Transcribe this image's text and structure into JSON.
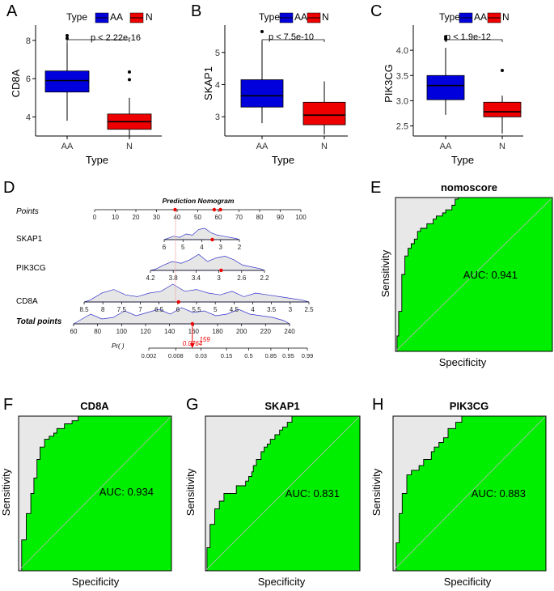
{
  "colors": {
    "aa": "#0000dd",
    "n": "#ee0000",
    "roc_fill": "#00ee00",
    "roc_bg": "#e8e8e8",
    "nomo_red": "#ee0000",
    "density_line": "#3333cc",
    "density_fill": "#e6e6e6"
  },
  "chart_data": [
    {
      "panel": "A",
      "type": "box",
      "ylabel": "CD8A",
      "xlabel": "Type",
      "legend_title": "Type",
      "legend": [
        "AA",
        "N"
      ],
      "categories": [
        "AA",
        "N"
      ],
      "pvalue": "p < 2.22e-16",
      "ylim": [
        3,
        8.8
      ],
      "yticks": [
        4,
        6,
        8
      ],
      "yticklabels": [
        "4",
        "6",
        "8"
      ],
      "boxes": [
        {
          "group": "AA",
          "whisker_low": 3.8,
          "q1": 5.3,
          "median": 5.9,
          "q3": 6.4,
          "whisker_high": 7.9,
          "outliers": [
            8.1,
            8.25
          ]
        },
        {
          "group": "N",
          "whisker_low": 3.0,
          "q1": 3.35,
          "median": 3.75,
          "q3": 4.15,
          "whisker_high": 5.0,
          "outliers": [
            5.95,
            6.35
          ]
        }
      ]
    },
    {
      "panel": "B",
      "type": "box",
      "ylabel": "SKAP1",
      "xlabel": "Type",
      "legend_title": "Type",
      "legend": [
        "AA",
        "N"
      ],
      "categories": [
        "AA",
        "N"
      ],
      "pvalue": "p < 7.5e-10",
      "ylim": [
        2.4,
        5.85
      ],
      "yticks": [
        3,
        4,
        5
      ],
      "yticklabels": [
        "3",
        "4",
        "5"
      ],
      "boxes": [
        {
          "group": "AA",
          "whisker_low": 2.8,
          "q1": 3.3,
          "median": 3.65,
          "q3": 4.15,
          "whisker_high": 5.35,
          "outliers": [
            5.65
          ]
        },
        {
          "group": "N",
          "whisker_low": 2.45,
          "q1": 2.75,
          "median": 3.05,
          "q3": 3.45,
          "whisker_high": 4.1,
          "outliers": []
        }
      ]
    },
    {
      "panel": "C",
      "type": "box",
      "ylabel": "PIK3CG",
      "xlabel": "Type",
      "legend_title": "Type",
      "legend": [
        "AA",
        "N"
      ],
      "categories": [
        "AA",
        "N"
      ],
      "pvalue": "p < 1.9e-12",
      "ylim": [
        2.3,
        4.5
      ],
      "yticks": [
        2.5,
        3.0,
        3.5,
        4.0
      ],
      "yticklabels": [
        "2.5",
        "3.0",
        "3.5",
        "4.0"
      ],
      "boxes": [
        {
          "group": "AA",
          "whisker_low": 2.72,
          "q1": 3.02,
          "median": 3.3,
          "q3": 3.5,
          "whisker_high": 4.05,
          "outliers": [
            4.22,
            4.27
          ]
        },
        {
          "group": "N",
          "whisker_low": 2.35,
          "q1": 2.68,
          "median": 2.78,
          "q3": 2.97,
          "whisker_high": 3.1,
          "outliers": [
            3.6
          ]
        }
      ]
    },
    {
      "panel": "D",
      "type": "nomogram",
      "title": "Prediction Nomogram",
      "rows": [
        {
          "label": "Points",
          "ticks": [
            "0",
            "10",
            "20",
            "30",
            "40",
            "50",
            "60",
            "70",
            "80",
            "90",
            "100"
          ]
        },
        {
          "label": "SKAP1",
          "ticks": [
            "6",
            "5",
            "4",
            "3",
            "2"
          ]
        },
        {
          "label": "PIK3CG",
          "ticks": [
            "4.2",
            "3.8",
            "3.4",
            "3",
            "2.6",
            "2.2"
          ]
        },
        {
          "label": "CD8A",
          "ticks": [
            "8.5",
            "8",
            "7.5",
            "7",
            "6.5",
            "6",
            "5.5",
            "5",
            "4.5",
            "4",
            "3.5",
            "3",
            "2.5"
          ]
        },
        {
          "label": "Total points",
          "ticks": [
            "60",
            "80",
            "100",
            "120",
            "140",
            "160",
            "180",
            "200",
            "220",
            "240"
          ]
        },
        {
          "label": "Pr( )",
          "ticks": [
            "0.002",
            "0.008",
            "0.03",
            "0.15",
            "0.5",
            "0.85",
            "0.95",
            "0.99"
          ]
        }
      ],
      "total_points_value": "159",
      "probability_value": "0.0764",
      "selected_points": [
        39,
        58,
        61
      ]
    },
    {
      "panel": "E",
      "type": "roc",
      "title": "nomoscore",
      "auc_label": "AUC: 0.941",
      "xlabel": "Specificity",
      "ylabel": "Sensitivity",
      "curve": [
        [
          0,
          0
        ],
        [
          0.01,
          0
        ],
        [
          0.01,
          0.1
        ],
        [
          0.02,
          0.1
        ],
        [
          0.02,
          0.26
        ],
        [
          0.04,
          0.26
        ],
        [
          0.04,
          0.5
        ],
        [
          0.06,
          0.5
        ],
        [
          0.06,
          0.62
        ],
        [
          0.08,
          0.62
        ],
        [
          0.08,
          0.67
        ],
        [
          0.1,
          0.67
        ],
        [
          0.1,
          0.7
        ],
        [
          0.12,
          0.7
        ],
        [
          0.12,
          0.73
        ],
        [
          0.14,
          0.73
        ],
        [
          0.14,
          0.78
        ],
        [
          0.16,
          0.78
        ],
        [
          0.16,
          0.8
        ],
        [
          0.2,
          0.8
        ],
        [
          0.2,
          0.83
        ],
        [
          0.24,
          0.83
        ],
        [
          0.24,
          0.86
        ],
        [
          0.26,
          0.86
        ],
        [
          0.26,
          0.88
        ],
        [
          0.3,
          0.88
        ],
        [
          0.3,
          0.9
        ],
        [
          0.32,
          0.9
        ],
        [
          0.32,
          0.92
        ],
        [
          0.36,
          0.92
        ],
        [
          0.36,
          0.95
        ],
        [
          0.38,
          0.95
        ],
        [
          0.38,
          0.99
        ],
        [
          0.4,
          0.99
        ],
        [
          0.4,
          1
        ],
        [
          1,
          1
        ]
      ]
    },
    {
      "panel": "F",
      "type": "roc",
      "title": "CD8A",
      "auc_label": "AUC: 0.934",
      "xlabel": "Specificity",
      "ylabel": "Sensitivity",
      "curve": [
        [
          0,
          0
        ],
        [
          0.02,
          0
        ],
        [
          0.02,
          0.2
        ],
        [
          0.05,
          0.2
        ],
        [
          0.05,
          0.37
        ],
        [
          0.08,
          0.37
        ],
        [
          0.08,
          0.5
        ],
        [
          0.1,
          0.5
        ],
        [
          0.1,
          0.6
        ],
        [
          0.12,
          0.6
        ],
        [
          0.12,
          0.72
        ],
        [
          0.14,
          0.72
        ],
        [
          0.14,
          0.8
        ],
        [
          0.17,
          0.8
        ],
        [
          0.17,
          0.85
        ],
        [
          0.2,
          0.85
        ],
        [
          0.2,
          0.87
        ],
        [
          0.23,
          0.87
        ],
        [
          0.23,
          0.89
        ],
        [
          0.25,
          0.89
        ],
        [
          0.25,
          0.92
        ],
        [
          0.3,
          0.92
        ],
        [
          0.3,
          0.95
        ],
        [
          0.35,
          0.95
        ],
        [
          0.35,
          0.97
        ],
        [
          0.39,
          0.97
        ],
        [
          0.39,
          1
        ],
        [
          1,
          1
        ]
      ]
    },
    {
      "panel": "G",
      "type": "roc",
      "title": "SKAP1",
      "auc_label": "AUC: 0.831",
      "xlabel": "Specificity",
      "ylabel": "Sensitivity",
      "curve": [
        [
          0,
          0
        ],
        [
          0.01,
          0
        ],
        [
          0.01,
          0.15
        ],
        [
          0.03,
          0.15
        ],
        [
          0.03,
          0.3
        ],
        [
          0.06,
          0.3
        ],
        [
          0.06,
          0.4
        ],
        [
          0.09,
          0.4
        ],
        [
          0.09,
          0.45
        ],
        [
          0.12,
          0.45
        ],
        [
          0.12,
          0.5
        ],
        [
          0.2,
          0.5
        ],
        [
          0.2,
          0.55
        ],
        [
          0.26,
          0.55
        ],
        [
          0.26,
          0.58
        ],
        [
          0.28,
          0.58
        ],
        [
          0.28,
          0.61
        ],
        [
          0.3,
          0.61
        ],
        [
          0.3,
          0.64
        ],
        [
          0.31,
          0.64
        ],
        [
          0.31,
          0.68
        ],
        [
          0.33,
          0.68
        ],
        [
          0.33,
          0.72
        ],
        [
          0.36,
          0.72
        ],
        [
          0.36,
          0.77
        ],
        [
          0.38,
          0.77
        ],
        [
          0.38,
          0.8
        ],
        [
          0.4,
          0.8
        ],
        [
          0.4,
          0.82
        ],
        [
          0.42,
          0.82
        ],
        [
          0.42,
          0.85
        ],
        [
          0.45,
          0.85
        ],
        [
          0.45,
          0.88
        ],
        [
          0.48,
          0.88
        ],
        [
          0.48,
          0.91
        ],
        [
          0.5,
          0.91
        ],
        [
          0.5,
          0.93
        ],
        [
          0.53,
          0.93
        ],
        [
          0.53,
          0.96
        ],
        [
          0.56,
          0.96
        ],
        [
          0.56,
          1
        ],
        [
          1,
          1
        ]
      ]
    },
    {
      "panel": "H",
      "type": "roc",
      "title": "PIK3CG",
      "auc_label": "AUC: 0.883",
      "xlabel": "Specificity",
      "ylabel": "Sensitivity",
      "curve": [
        [
          0,
          0
        ],
        [
          0.02,
          0
        ],
        [
          0.02,
          0.18
        ],
        [
          0.04,
          0.18
        ],
        [
          0.04,
          0.37
        ],
        [
          0.06,
          0.37
        ],
        [
          0.06,
          0.5
        ],
        [
          0.09,
          0.5
        ],
        [
          0.09,
          0.62
        ],
        [
          0.12,
          0.62
        ],
        [
          0.12,
          0.65
        ],
        [
          0.17,
          0.65
        ],
        [
          0.17,
          0.68
        ],
        [
          0.2,
          0.68
        ],
        [
          0.2,
          0.72
        ],
        [
          0.25,
          0.72
        ],
        [
          0.25,
          0.77
        ],
        [
          0.27,
          0.77
        ],
        [
          0.27,
          0.8
        ],
        [
          0.3,
          0.8
        ],
        [
          0.3,
          0.83
        ],
        [
          0.33,
          0.83
        ],
        [
          0.33,
          0.86
        ],
        [
          0.36,
          0.86
        ],
        [
          0.36,
          0.92
        ],
        [
          0.41,
          0.92
        ],
        [
          0.41,
          0.96
        ],
        [
          0.45,
          0.96
        ],
        [
          0.45,
          1
        ],
        [
          1,
          1
        ]
      ]
    }
  ]
}
